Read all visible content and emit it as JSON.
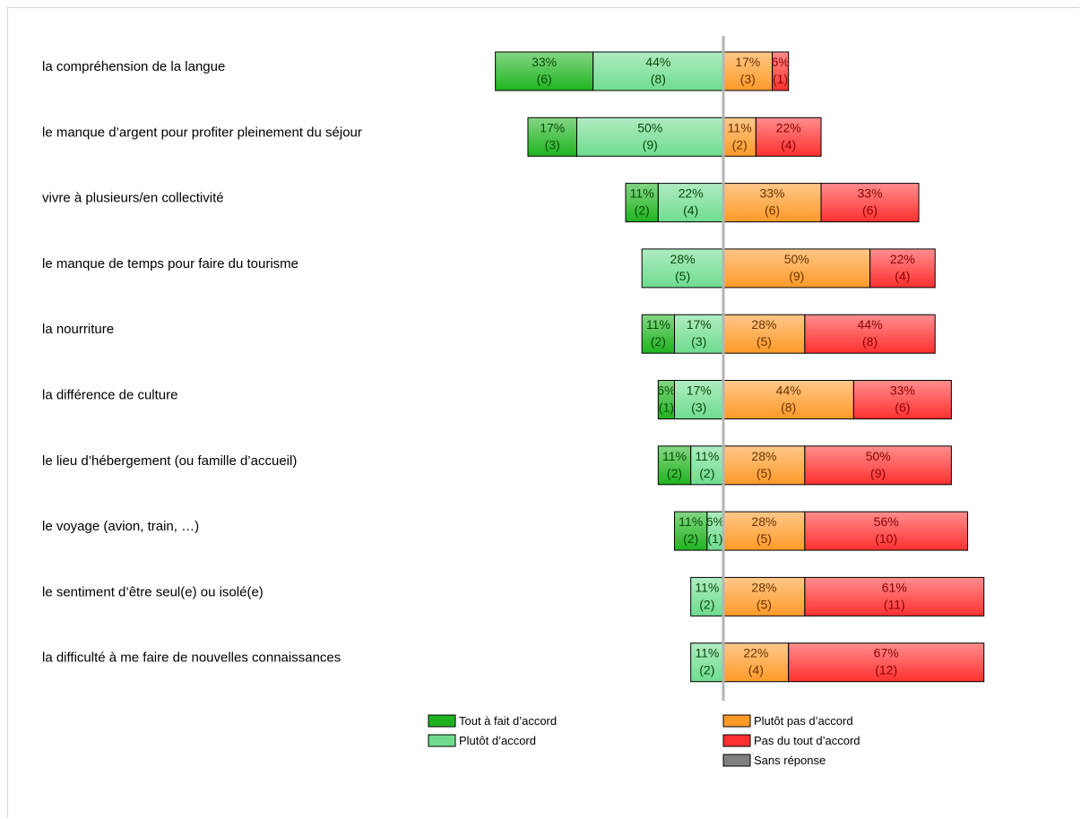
{
  "chart_data": {
    "type": "bar",
    "orientation": "horizontal-diverging",
    "categories": [
      "la compréhension de la langue",
      "le manque d’argent pour profiter pleinement du séjour",
      "vivre à plusieurs/en collectivité",
      "le manque de temps pour faire du tourisme",
      "la nourriture",
      "la différence de culture",
      "le lieu d’hébergement (ou famille d’accueil)",
      "le voyage (avion, train, …)",
      "le sentiment d’être seul(e) ou isolé(e)",
      "la difficulté à me faire de nouvelles connaissances"
    ],
    "series": [
      {
        "name": "Tout à fait d’accord",
        "color": "#1fb41f",
        "side": "left",
        "values": [
          6,
          3,
          2,
          0,
          2,
          1,
          2,
          2,
          0,
          0
        ],
        "labels": [
          "33%",
          "17%",
          "11%",
          "",
          "11%",
          "6%",
          "11%",
          "11%",
          "",
          ""
        ]
      },
      {
        "name": "Plutôt d’accord",
        "color": "#6fdc8f",
        "side": "left",
        "values": [
          8,
          9,
          4,
          5,
          3,
          3,
          2,
          1,
          2,
          2
        ],
        "labels": [
          "44%",
          "50%",
          "22%",
          "28%",
          "17%",
          "17%",
          "11%",
          "6%",
          "11%",
          "11%"
        ]
      },
      {
        "name": "Plutôt pas d’accord",
        "color": "#ff9a28",
        "side": "right",
        "values": [
          3,
          2,
          6,
          9,
          5,
          8,
          5,
          5,
          5,
          4
        ],
        "labels": [
          "17%",
          "11%",
          "33%",
          "50%",
          "28%",
          "44%",
          "28%",
          "28%",
          "28%",
          "22%"
        ]
      },
      {
        "name": "Pas du tout d’accord",
        "color": "#ff3030",
        "side": "right",
        "values": [
          1,
          4,
          6,
          4,
          8,
          6,
          9,
          10,
          11,
          12
        ],
        "labels": [
          "6%",
          "22%",
          "33%",
          "22%",
          "44%",
          "33%",
          "50%",
          "56%",
          "61%",
          "67%"
        ]
      },
      {
        "name": "Sans réponse",
        "color": "#808080",
        "side": "none",
        "values": [
          0,
          0,
          0,
          0,
          0,
          0,
          0,
          0,
          0,
          0
        ],
        "labels": [
          "",
          "",
          "",
          "",
          "",
          "",
          "",
          "",
          "",
          ""
        ]
      }
    ],
    "legend": {
      "position": "bottom",
      "entries": [
        "Tout à fait d’accord",
        "Plutôt d’accord",
        "Plutôt pas d’accord",
        "Pas du tout d’accord",
        "Sans réponse"
      ]
    },
    "axis_line_color": "#b4b4b4"
  }
}
